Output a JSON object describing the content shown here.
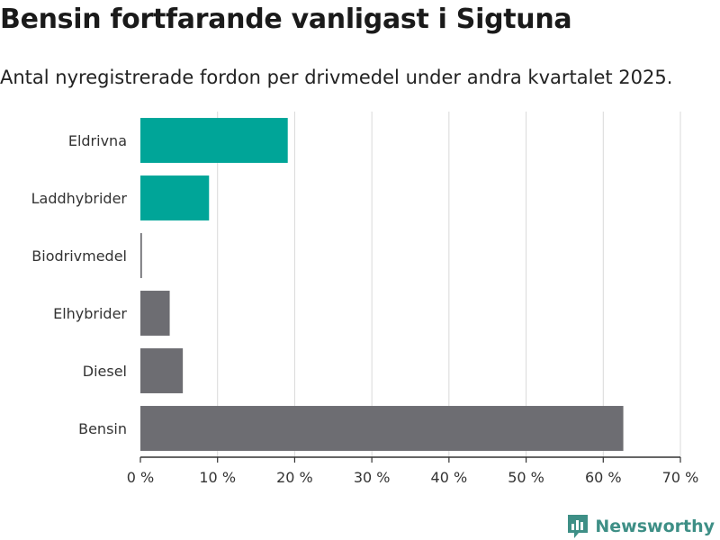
{
  "title": "Bensin fortfarande vanligast i Sigtuna",
  "subtitle": "Antal nyregistrerade fordon per drivmedel under andra kvartalet 2025.",
  "brand": "Newsworthy",
  "colors": {
    "highlight": "#00a598",
    "neutral": "#6d6d72",
    "grid": "#d9d9d9",
    "axis": "#333333"
  },
  "chart_data": {
    "type": "bar",
    "orientation": "horizontal",
    "categories": [
      "Eldrivna",
      "Laddhybrider",
      "Biodrivmedel",
      "Elhybrider",
      "Diesel",
      "Bensin"
    ],
    "values": [
      19.1,
      8.9,
      0.2,
      3.8,
      5.5,
      62.6
    ],
    "highlight": [
      true,
      true,
      false,
      false,
      false,
      false
    ],
    "xlim": [
      0,
      70
    ],
    "xticks": [
      0,
      10,
      20,
      30,
      40,
      50,
      60,
      70
    ],
    "xtick_labels": [
      "0 %",
      "10 %",
      "20 %",
      "30 %",
      "40 %",
      "50 %",
      "60 %",
      "70 %"
    ],
    "grid": true
  }
}
